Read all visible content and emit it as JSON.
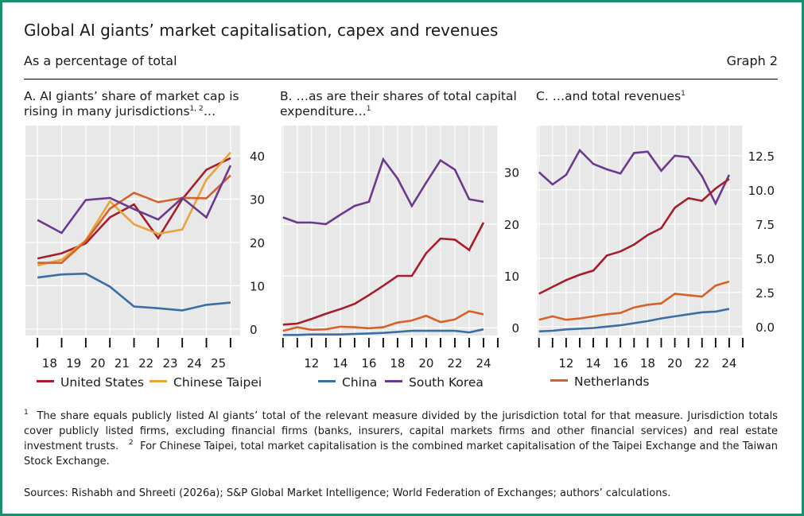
{
  "header": {
    "title": "Global AI giants’ market capitalisation, capex and revenues",
    "subtitle": "As a percentage of total",
    "graph_label": "Graph 2"
  },
  "panels": {
    "A": {
      "title_line1": "A. AI giants’ share of market cap is",
      "title_line2": "rising in many jurisdictions",
      "sup": "1, 2",
      "suffix": "…"
    },
    "B": {
      "title_line1": "B. …as are their shares of total capital",
      "title_line2": "expenditure…",
      "sup": "1"
    },
    "C": {
      "title_line1": "C. …and total revenues",
      "sup": "1"
    }
  },
  "legend": {
    "united_states": "United States",
    "chinese_taipei": "Chinese Taipei",
    "china": "China",
    "south_korea": "South Korea",
    "netherlands": "Netherlands"
  },
  "colors": {
    "united_states": "#a61e2c",
    "chinese_taipei": "#e8a33a",
    "china": "#3a6ea5",
    "south_korea": "#6b3a8e",
    "netherlands": "#d8612a",
    "plot_bg": "#e8e8e8",
    "frame": "#1a8f6f"
  },
  "footnotes": {
    "note1_mark": "1",
    "note1": "The share equals publicly listed AI giants’ total of the relevant measure divided by the jurisdiction total for that measure. Jurisdiction totals cover publicly listed firms, excluding financial firms (banks, insurers, capital markets firms and other financial services) and real estate investment trusts.",
    "note2_mark": "2",
    "note2": "For Chinese Taipei, total market capitalisation is the combined market capitalisation of the Taipei Exchange and the Taiwan Stock Exchange."
  },
  "sources": "Sources: Rishabh and Shreeti (2026a); S&P Global Market Intelligence; World Federation of Exchanges; authors’ calculations.",
  "chart_data": [
    {
      "type": "line",
      "title": "A. AI giants’ share of market cap is rising in many jurisdictions",
      "x": [
        2017.6,
        2018.6,
        2019.6,
        2020.6,
        2021.6,
        2022.6,
        2023.6,
        2024.6,
        2025.6
      ],
      "x_tick_labels": [
        "18",
        "19",
        "20",
        "21",
        "22",
        "23",
        "24",
        "25"
      ],
      "y_tick_labels": [
        "0",
        "10",
        "20",
        "30",
        "40"
      ],
      "ylim": [
        -1.5,
        47
      ],
      "series": [
        {
          "name": "United States",
          "color_key": "united_states",
          "points": [
            [
              2017.6,
              16.3
            ],
            [
              2018.6,
              17.5
            ],
            [
              2019.6,
              19.8
            ],
            [
              2020.6,
              25.8
            ],
            [
              2021.6,
              28.8
            ],
            [
              2022.6,
              21
            ],
            [
              2023.6,
              30
            ],
            [
              2024.6,
              36.8
            ],
            [
              2025.6,
              39.5
            ]
          ]
        },
        {
          "name": "Chinese Taipei",
          "color_key": "chinese_taipei",
          "points": [
            [
              2017.6,
              14.7
            ],
            [
              2018.6,
              16
            ],
            [
              2019.6,
              20.5
            ],
            [
              2020.6,
              29.5
            ],
            [
              2021.6,
              24.2
            ],
            [
              2022.6,
              22
            ],
            [
              2023.6,
              23
            ],
            [
              2024.6,
              34.5
            ],
            [
              2025.6,
              40.8
            ]
          ]
        },
        {
          "name": "",
          "color_key": "netherlands",
          "points": [
            [
              2017.6,
              15.3
            ],
            [
              2018.6,
              15.3
            ],
            [
              2019.6,
              20.3
            ],
            [
              2020.6,
              27.8
            ],
            [
              2021.6,
              31.5
            ],
            [
              2022.6,
              29.3
            ],
            [
              2023.6,
              30.3
            ],
            [
              2024.6,
              30.2
            ],
            [
              2025.6,
              35.5
            ]
          ]
        },
        {
          "name": "South Korea",
          "color_key": "south_korea",
          "points": [
            [
              2017.6,
              25.2
            ],
            [
              2018.6,
              22.2
            ],
            [
              2019.6,
              29.8
            ],
            [
              2020.6,
              30.3
            ],
            [
              2021.6,
              27.7
            ],
            [
              2022.6,
              25.3
            ],
            [
              2023.6,
              30.3
            ],
            [
              2024.6,
              25.8
            ],
            [
              2025.6,
              37.8
            ]
          ]
        },
        {
          "name": "China",
          "color_key": "china",
          "points": [
            [
              2017.6,
              11.9
            ],
            [
              2018.6,
              12.6
            ],
            [
              2019.6,
              12.8
            ],
            [
              2020.6,
              9.8
            ],
            [
              2021.6,
              5.2
            ],
            [
              2022.6,
              4.8
            ],
            [
              2023.6,
              4.3
            ],
            [
              2024.6,
              5.6
            ],
            [
              2025.6,
              6.1
            ]
          ]
        }
      ]
    },
    {
      "type": "line",
      "title": "B. …as are their shares of total capital expenditure…",
      "x": [
        2010,
        2011,
        2012,
        2013,
        2014,
        2015,
        2016,
        2017,
        2018,
        2019,
        2020,
        2021,
        2022,
        2023,
        2024,
        2025
      ],
      "x_tick_labels": [
        "12",
        "14",
        "16",
        "18",
        "20",
        "22",
        "24"
      ],
      "y_tick_labels": [
        "0",
        "10",
        "20",
        "30"
      ],
      "ylim": [
        -1.5,
        39
      ],
      "series": [
        {
          "name": "South Korea",
          "color_key": "south_korea",
          "points": [
            [
              2010,
              21.3
            ],
            [
              2011,
              20.3
            ],
            [
              2012,
              20.3
            ],
            [
              2013,
              20
            ],
            [
              2014,
              21.8
            ],
            [
              2015,
              23.5
            ],
            [
              2016,
              24.3
            ],
            [
              2017,
              32.5
            ],
            [
              2018,
              28.8
            ],
            [
              2019,
              23.5
            ],
            [
              2020,
              28
            ],
            [
              2021,
              32.3
            ],
            [
              2022,
              30.5
            ],
            [
              2023,
              24.8
            ],
            [
              2024,
              24.3
            ]
          ]
        },
        {
          "name": "United States",
          "color_key": "united_states",
          "points": [
            [
              2010,
              0.6
            ],
            [
              2011,
              0.8
            ],
            [
              2012,
              1.7
            ],
            [
              2013,
              2.7
            ],
            [
              2014,
              3.6
            ],
            [
              2015,
              4.6
            ],
            [
              2016,
              6.3
            ],
            [
              2017,
              8.1
            ],
            [
              2018,
              10
            ],
            [
              2019,
              10
            ],
            [
              2020,
              14.4
            ],
            [
              2021,
              17.2
            ],
            [
              2022,
              17
            ],
            [
              2023,
              15
            ],
            [
              2024,
              20.3
            ]
          ]
        },
        {
          "name": "Netherlands",
          "color_key": "netherlands",
          "points": [
            [
              2010,
              -0.6
            ],
            [
              2011,
              0.1
            ],
            [
              2012,
              -0.4
            ],
            [
              2013,
              -0.3
            ],
            [
              2014,
              0.2
            ],
            [
              2015,
              0.1
            ],
            [
              2016,
              -0.1
            ],
            [
              2017,
              0.1
            ],
            [
              2018,
              1
            ],
            [
              2019,
              1.4
            ],
            [
              2020,
              2.3
            ],
            [
              2021,
              1.1
            ],
            [
              2022,
              1.6
            ],
            [
              2023,
              3.2
            ],
            [
              2024,
              2.6
            ]
          ]
        },
        {
          "name": "China",
          "color_key": "china",
          "points": [
            [
              2010,
              -1.4
            ],
            [
              2011,
              -1.4
            ],
            [
              2012,
              -1.3
            ],
            [
              2013,
              -1.3
            ],
            [
              2014,
              -1.3
            ],
            [
              2015,
              -1.2
            ],
            [
              2016,
              -1.1
            ],
            [
              2017,
              -1
            ],
            [
              2018,
              -0.8
            ],
            [
              2019,
              -0.6
            ],
            [
              2020,
              -0.6
            ],
            [
              2021,
              -0.6
            ],
            [
              2022,
              -0.6
            ],
            [
              2023,
              -0.9
            ],
            [
              2024,
              -0.3
            ]
          ]
        }
      ]
    },
    {
      "type": "line",
      "title": "C. …and total revenues",
      "x": [
        2010,
        2011,
        2012,
        2013,
        2014,
        2015,
        2016,
        2017,
        2018,
        2019,
        2020,
        2021,
        2022,
        2023,
        2024,
        2025
      ],
      "x_tick_labels": [
        "12",
        "14",
        "16",
        "18",
        "20",
        "22",
        "24"
      ],
      "y_tick_labels": [
        "0.0",
        "2.5",
        "5.0",
        "7.5",
        "10.0",
        "12.5"
      ],
      "ylim": [
        -0.65,
        14.7
      ],
      "series": [
        {
          "name": "South Korea",
          "color_key": "south_korea",
          "points": [
            [
              2010,
              11.3
            ],
            [
              2011,
              10.4
            ],
            [
              2012,
              11.1
            ],
            [
              2013,
              12.9
            ],
            [
              2014,
              11.9
            ],
            [
              2015,
              11.5
            ],
            [
              2016,
              11.2
            ],
            [
              2017,
              12.7
            ],
            [
              2018,
              12.8
            ],
            [
              2019,
              11.4
            ],
            [
              2020,
              12.5
            ],
            [
              2021,
              12.4
            ],
            [
              2022,
              11
            ],
            [
              2023,
              9
            ],
            [
              2024,
              11.1
            ]
          ]
        },
        {
          "name": "United States",
          "color_key": "united_states",
          "points": [
            [
              2010,
              2.4
            ],
            [
              2011,
              2.9
            ],
            [
              2012,
              3.4
            ],
            [
              2013,
              3.8
            ],
            [
              2014,
              4.1
            ],
            [
              2015,
              5.2
            ],
            [
              2016,
              5.5
            ],
            [
              2017,
              6
            ],
            [
              2018,
              6.7
            ],
            [
              2019,
              7.2
            ],
            [
              2020,
              8.7
            ],
            [
              2021,
              9.4
            ],
            [
              2022,
              9.2
            ],
            [
              2023,
              10.1
            ],
            [
              2024,
              10.8
            ]
          ]
        },
        {
          "name": "Netherlands",
          "color_key": "netherlands",
          "points": [
            [
              2010,
              0.5
            ],
            [
              2011,
              0.75
            ],
            [
              2012,
              0.5
            ],
            [
              2013,
              0.6
            ],
            [
              2014,
              0.75
            ],
            [
              2015,
              0.9
            ],
            [
              2016,
              1
            ],
            [
              2017,
              1.4
            ],
            [
              2018,
              1.6
            ],
            [
              2019,
              1.7
            ],
            [
              2020,
              2.4
            ],
            [
              2021,
              2.3
            ],
            [
              2022,
              2.2
            ],
            [
              2023,
              3
            ],
            [
              2024,
              3.3
            ]
          ]
        },
        {
          "name": "China",
          "color_key": "china",
          "points": [
            [
              2010,
              -0.35
            ],
            [
              2011,
              -0.3
            ],
            [
              2012,
              -0.2
            ],
            [
              2013,
              -0.15
            ],
            [
              2014,
              -0.1
            ],
            [
              2015,
              0
            ],
            [
              2016,
              0.1
            ],
            [
              2017,
              0.25
            ],
            [
              2018,
              0.4
            ],
            [
              2019,
              0.6
            ],
            [
              2020,
              0.75
            ],
            [
              2021,
              0.9
            ],
            [
              2022,
              1.05
            ],
            [
              2023,
              1.1
            ],
            [
              2024,
              1.3
            ]
          ]
        }
      ]
    }
  ]
}
